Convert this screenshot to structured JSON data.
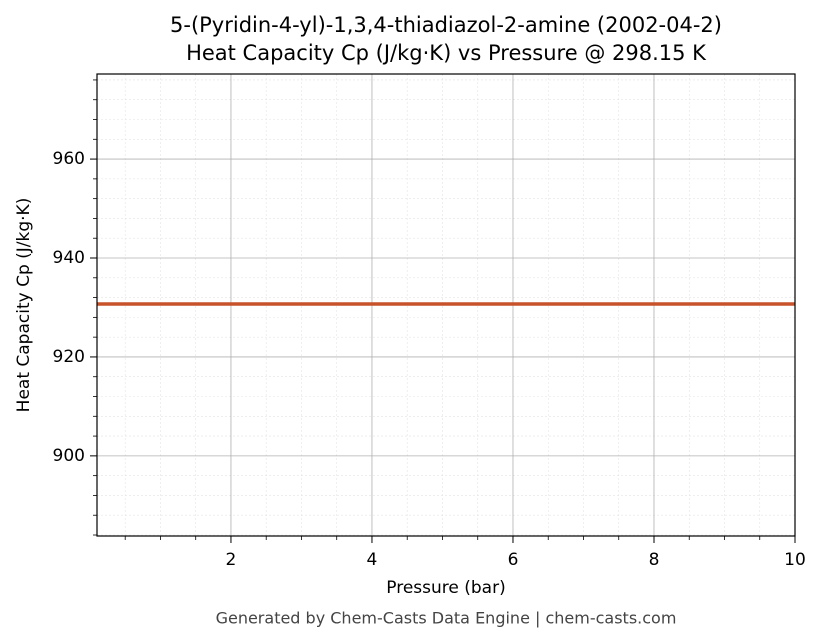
{
  "chart_data": {
    "type": "line",
    "title": "5-(Pyridin-4-yl)-1,3,4-thiadiazol-2-amine (2002-04-2)",
    "subtitle": "Heat Capacity Cp (J/kg·K) vs Pressure @ 298.15 K",
    "x_label": "Pressure (bar)",
    "y_label": "Heat Capacity Cp (J/kg·K)",
    "footer": "Generated by Chem-Casts Data Engine | chem-casts.com",
    "x": [
      0.1,
      10
    ],
    "series": [
      {
        "name": "Cp",
        "color": "#c8522a",
        "values": [
          930.7,
          930.7
        ]
      }
    ],
    "xlim": [
      0.1,
      10
    ],
    "ylim": [
      883.8,
      977.2
    ],
    "xticks": [
      2,
      4,
      6,
      8,
      10
    ],
    "yticks": [
      900,
      920,
      940,
      960
    ],
    "xminorticks": [
      0.5,
      1,
      1.5,
      2.5,
      3,
      3.5,
      4.5,
      5,
      5.5,
      6.5,
      7,
      7.5,
      8.5,
      9,
      9.5
    ],
    "yminorticks": [
      884,
      888,
      892,
      896,
      904,
      908,
      912,
      916,
      924,
      928,
      932,
      936,
      944,
      948,
      952,
      956,
      964,
      968,
      972,
      976
    ],
    "grid": true
  }
}
